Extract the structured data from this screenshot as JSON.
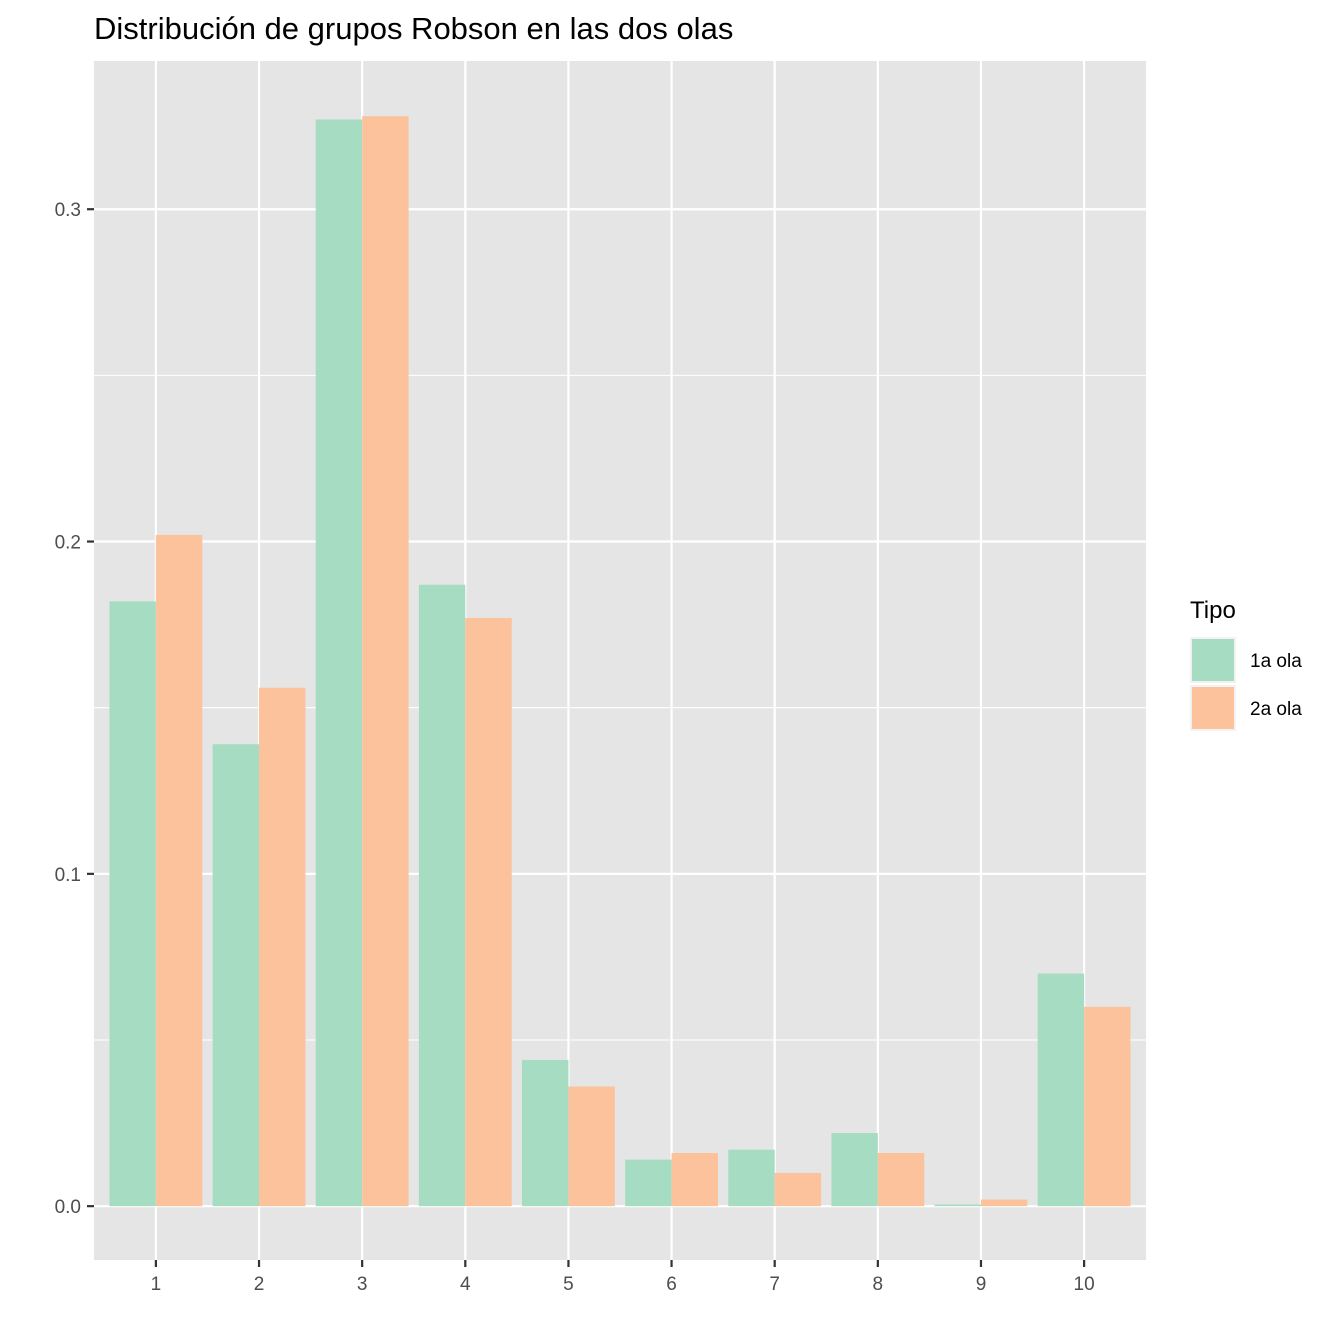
{
  "chart_data": {
    "type": "bar",
    "title": "Distribución de grupos Robson en las dos olas",
    "xlabel": "",
    "ylabel": "",
    "categories": [
      "1",
      "2",
      "3",
      "4",
      "5",
      "6",
      "7",
      "8",
      "9",
      "10"
    ],
    "series": [
      {
        "name": "1a ola",
        "color": "#a6dcc2",
        "values": [
          0.182,
          0.139,
          0.327,
          0.187,
          0.044,
          0.014,
          0.017,
          0.022,
          0.0005,
          0.07
        ]
      },
      {
        "name": "2a ola",
        "color": "#fbc29c",
        "values": [
          0.202,
          0.156,
          0.328,
          0.177,
          0.036,
          0.016,
          0.01,
          0.016,
          0.002,
          0.06
        ]
      }
    ],
    "ylim": [
      -0.0162,
      0.3446
    ],
    "yticks": [
      0.0,
      0.1,
      0.2,
      0.3
    ],
    "ytick_labels": [
      "0.0",
      "0.1",
      "0.2",
      "0.3"
    ],
    "legend": {
      "title": "Tipo",
      "position": "right"
    },
    "grid": true,
    "panel_color": "#e5e5e5",
    "grid_color": "#ffffff"
  }
}
